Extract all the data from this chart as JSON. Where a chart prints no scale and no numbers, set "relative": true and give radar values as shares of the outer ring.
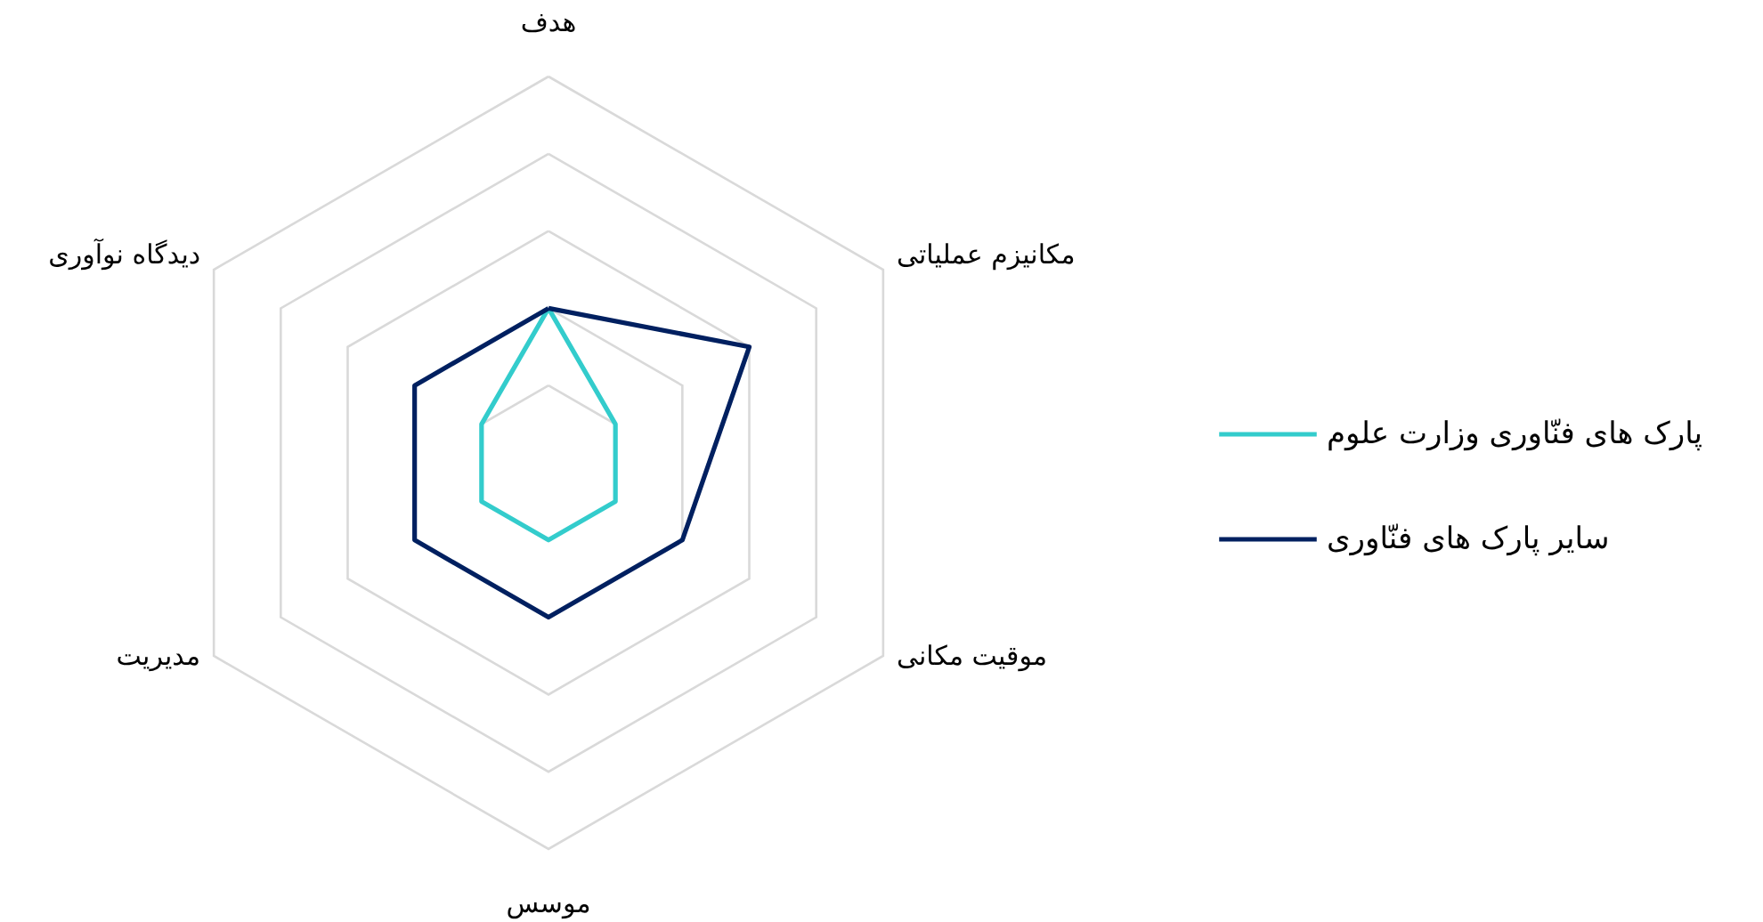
{
  "chart_data": {
    "type": "radar",
    "relative": true,
    "grid": true,
    "legend": "right",
    "categories": [
      "هدف",
      "مکانیزم عملیاتی",
      "موقیت مکانی",
      "موسس",
      "مدیریت",
      "دیدگاه نوآوری"
    ],
    "series": [
      {
        "name": "پارک های فنّاوری وزارت علوم",
        "color": "#33cccc",
        "values": [
          0.4,
          0.2,
          0.2,
          0.2,
          0.2,
          0.2
        ]
      },
      {
        "name": "سایر پارک های فنّاوری",
        "color": "#002060",
        "values": [
          0.4,
          0.6,
          0.4,
          0.4,
          0.4,
          0.4
        ]
      }
    ]
  }
}
